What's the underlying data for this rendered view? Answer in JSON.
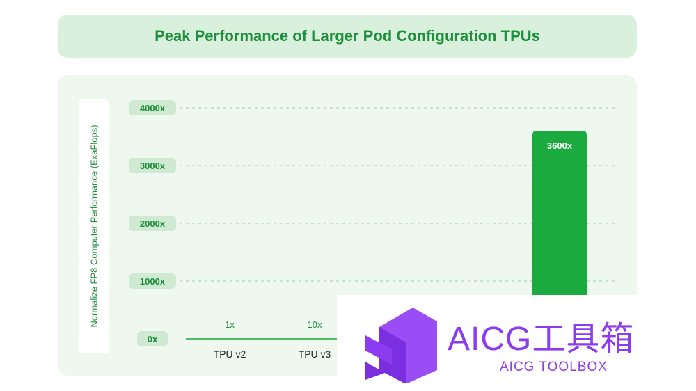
{
  "chart_data": {
    "type": "bar",
    "title": "Peak Performance of Larger Pod Configuration TPUs",
    "ylabel": "Normalize FP8 Computer Performance (ExaFlops)",
    "xlabel": "",
    "ylim": [
      0,
      4000
    ],
    "yticks": [
      "0x",
      "1000x",
      "2000x",
      "3000x",
      "4000x"
    ],
    "grid": true,
    "categories": [
      "TPU v2",
      "TPU v3",
      "",
      "",
      ""
    ],
    "values": [
      1,
      10,
      null,
      null,
      3600
    ],
    "value_labels": [
      "1x",
      "10x",
      "",
      "",
      "3600x"
    ],
    "bar_color": "#1aaa3d"
  },
  "watermark": {
    "brand": "AICG工具箱",
    "subtitle": "AICG TOOLBOX",
    "color": "#8b3cf0"
  }
}
